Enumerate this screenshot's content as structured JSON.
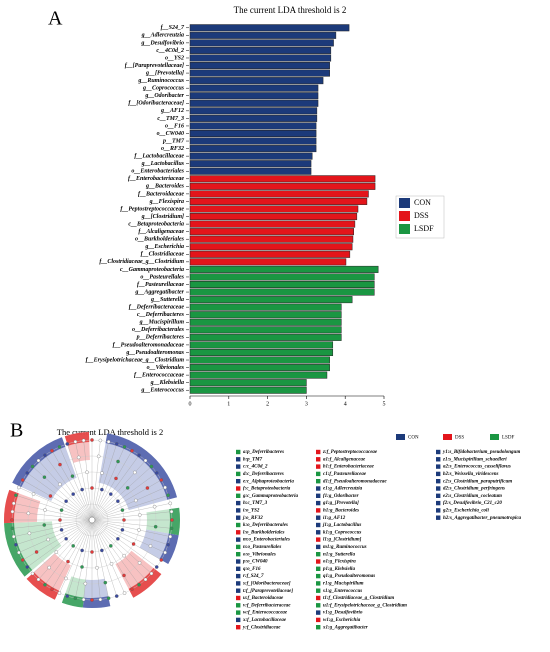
{
  "chart_data": {
    "type": "bar",
    "title": "The current LDA threshold is 2",
    "panel_label": "A",
    "xlim": [
      0,
      5
    ],
    "xticks": [
      0,
      1,
      2,
      3,
      4,
      5
    ],
    "series": [
      {
        "name": "CON",
        "color": "#1c3a7a",
        "categories": [
          "f__S24_7",
          "g__Adlercreutzia",
          "g__Desulfovibrio",
          "c__4C0d_2",
          "o__YS2",
          "f__[Paraprevotellaceae]",
          "g__[Prevotella]",
          "g__Ruminococcus",
          "g__Coprococcus",
          "g__Odoribacter",
          "f__[Odoribacteraceae]",
          "g__AF12",
          "c__TM7_3",
          "o__F16",
          "o__CW040",
          "p__TM7",
          "o__RF32",
          "f__Lactobacillaceae",
          "g__Lactobacillus",
          "o__Enterobacteriales"
        ],
        "values": [
          4.1,
          3.76,
          3.7,
          3.63,
          3.63,
          3.6,
          3.6,
          3.43,
          3.3,
          3.3,
          3.3,
          3.27,
          3.27,
          3.25,
          3.25,
          3.25,
          3.25,
          3.15,
          3.12,
          3.12
        ]
      },
      {
        "name": "DSS",
        "color": "#e3151b",
        "categories": [
          "f__Enterobacteriaceae",
          "g__Bacteroides",
          "f__Bacteroidaceae",
          "g__Flexispira",
          "f__Peptostreptococcaceae",
          "g__[Clostridium]",
          "c__Betaproteobacteria",
          "f__Alcaligenaceae",
          "o__Burkholderiales",
          "g__Escherichia",
          "f__Clostridiaceae",
          "f__Clostridiaceae_g__Clostridium"
        ],
        "values": [
          4.77,
          4.77,
          4.6,
          4.56,
          4.33,
          4.3,
          4.25,
          4.22,
          4.2,
          4.18,
          4.12,
          4.02
        ]
      },
      {
        "name": "LSDF",
        "color": "#1a9642",
        "categories": [
          "c__Gammaproteobacteria",
          "o__Pasteurellales",
          "f__Pasteurellaceae",
          "g__Aggregatibacter",
          "g__Sutterella",
          "f__Deferribacteraceae",
          "c__Deferribacteres",
          "g__Mucispirillum",
          "o__Deferribacterales",
          "p__Deferribacteres",
          "f__Pseudoalteromonadaceae",
          "g__Pseudoalteromonas",
          "f__Erysipelotrichaceae_g__Clostridium",
          "o__Vibrionales",
          "f__Enterococcaceae",
          "g__Klebsiella",
          "g__Enterococcus"
        ],
        "values": [
          4.85,
          4.75,
          4.75,
          4.75,
          4.18,
          3.9,
          3.9,
          3.9,
          3.9,
          3.9,
          3.68,
          3.68,
          3.6,
          3.6,
          3.53,
          3.0,
          3.0
        ]
      }
    ]
  },
  "cladogram": {
    "panel_label": "B",
    "title": "The current LDA threshold is 2",
    "columns": [
      [
        {
          "label": "a:p_Deferribacteres",
          "color": "#1a9642"
        },
        {
          "label": "b:p_TM7",
          "color": "#1c3a7a"
        },
        {
          "label": "c:c_4C0d_2",
          "color": "#1c3a7a"
        },
        {
          "label": "d:c_Deferribacteres",
          "color": "#1a9642"
        },
        {
          "label": "e:c_Alphaproteobacteria",
          "color": "#1c3a7a"
        },
        {
          "label": "f:c_Betaproteobacteria",
          "color": "#e3151b"
        },
        {
          "label": "g:c_Gammaproteobacteria",
          "color": "#1a9642"
        },
        {
          "label": "h:c_TM7_3",
          "color": "#1c3a7a"
        },
        {
          "label": "i:o_YS2",
          "color": "#1c3a7a"
        },
        {
          "label": "j:o_RF32",
          "color": "#1c3a7a"
        },
        {
          "label": "k:o_Deferribacterales",
          "color": "#1a9642"
        },
        {
          "label": "l:o_Burkholderiales",
          "color": "#e3151b"
        },
        {
          "label": "m:o_Enterobacteriales",
          "color": "#1c3a7a"
        },
        {
          "label": "n:o_Pasteurellales",
          "color": "#1a9642"
        },
        {
          "label": "o:o_Vibrionales",
          "color": "#1a9642"
        },
        {
          "label": "p:o_CW040",
          "color": "#1c3a7a"
        },
        {
          "label": "q:o_F16",
          "color": "#1c3a7a"
        },
        {
          "label": "r:f_S24_7",
          "color": "#1c3a7a"
        },
        {
          "label": "s:f_[Odoribacteraceae]",
          "color": "#1c3a7a"
        },
        {
          "label": "t:f_[Paraprevotellaceae]",
          "color": "#1c3a7a"
        },
        {
          "label": "u:f_Bacteroidaceae",
          "color": "#e3151b"
        },
        {
          "label": "v:f_Deferribacteraceae",
          "color": "#1a9642"
        },
        {
          "label": "w:f_Enterococcaceae",
          "color": "#1a9642"
        },
        {
          "label": "x:f_Lactobacillaceae",
          "color": "#1c3a7a"
        },
        {
          "label": "y:f_Clostridiaceae",
          "color": "#e3151b"
        }
      ],
      [
        {
          "label": "z:f_Peptostreptococcaceae",
          "color": "#e3151b"
        },
        {
          "label": "a1:f_Alcaligenaceae",
          "color": "#e3151b"
        },
        {
          "label": "b1:f_Enterobacteriaceae",
          "color": "#e3151b"
        },
        {
          "label": "c1:f_Pasteurellaceae",
          "color": "#1a9642"
        },
        {
          "label": "d1:f_Pseudoalteromonadaceae",
          "color": "#1a9642"
        },
        {
          "label": "e1:g_Adlercreutzia",
          "color": "#1c3a7a"
        },
        {
          "label": "f1:g_Odoribacter",
          "color": "#1c3a7a"
        },
        {
          "label": "g1:g_[Prevotella]",
          "color": "#1c3a7a"
        },
        {
          "label": "h1:g_Bacteroides",
          "color": "#e3151b"
        },
        {
          "label": "i1:g_AF12",
          "color": "#1c3a7a"
        },
        {
          "label": "j1:g_Lactobacillus",
          "color": "#1c3a7a"
        },
        {
          "label": "k1:g_Coprococcus",
          "color": "#1c3a7a"
        },
        {
          "label": "l1:g_[Clostridium]",
          "color": "#e3151b"
        },
        {
          "label": "m1:g_Ruminococcus",
          "color": "#1c3a7a"
        },
        {
          "label": "n1:g_Sutterella",
          "color": "#1a9642"
        },
        {
          "label": "o1:g_Flexispira",
          "color": "#e3151b"
        },
        {
          "label": "p1:g_Klebsiella",
          "color": "#1a9642"
        },
        {
          "label": "q1:g_Pseudoalteromonas",
          "color": "#1a9642"
        },
        {
          "label": "r1:g_Mucispirillum",
          "color": "#1a9642"
        },
        {
          "label": "s1:g_Enterococcus",
          "color": "#1a9642"
        },
        {
          "label": "t1:f_Clostridiaceae_g_Clostridium",
          "color": "#e3151b"
        },
        {
          "label": "u1:f_Erysipelotrichaceae_g_Clostridium",
          "color": "#1a9642"
        },
        {
          "label": "v1:g_Desulfovibrio",
          "color": "#1c3a7a"
        },
        {
          "label": "w1:g_Escherichia",
          "color": "#e3151b"
        },
        {
          "label": "x1:g_Aggregatibacter",
          "color": "#1a9642"
        }
      ],
      [
        {
          "label": "y1:s_Bifidobacterium_pseudolongum",
          "color": "#1c3a7a"
        },
        {
          "label": "z1:s_Mucispirillum_schaedleri",
          "color": "#1c3a7a"
        },
        {
          "label": "a2:s_Enterococcus_casseliflavus",
          "color": "#1c3a7a"
        },
        {
          "label": "b2:s_Weissella_viridescens",
          "color": "#1c3a7a"
        },
        {
          "label": "c2:s_Clostridium_paraputrificum",
          "color": "#1c3a7a"
        },
        {
          "label": "d2:s_Clostridium_perfringens",
          "color": "#1c3a7a"
        },
        {
          "label": "e2:s_Clostridium_cocleatum",
          "color": "#1c3a7a"
        },
        {
          "label": "f2:s_Desulfovibrio_C21_c20",
          "color": "#1c3a7a"
        },
        {
          "label": "g2:s_Escherichia_coli",
          "color": "#1c3a7a"
        },
        {
          "label": "h2:s_Aggregatibacter_pneumotropica",
          "color": "#1c3a7a"
        }
      ]
    ]
  }
}
